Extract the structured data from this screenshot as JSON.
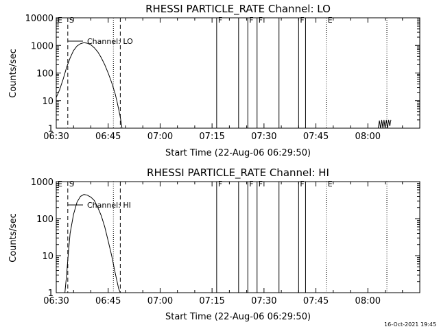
{
  "footer_timestamp": "16-Oct-2021 19:45",
  "chart_data": [
    {
      "type": "line",
      "title": "RHESSI PARTICLE_RATE Channel: LO",
      "xlabel": "Start Time (22-Aug-06 06:29:50)",
      "ylabel": "Counts/sec",
      "yscale": "log",
      "xlim": [
        "06:30",
        "08:15"
      ],
      "ylim": [
        1,
        10000
      ],
      "x_ticks": [
        "06:30",
        "06:45",
        "07:00",
        "07:15",
        "07:30",
        "07:45",
        "08:00"
      ],
      "y_ticks": [
        "1",
        "10",
        "100",
        "1000",
        "10000"
      ],
      "legend": "Channel: LO",
      "legend_position": "top-left",
      "series": [
        {
          "name": "Channel: LO",
          "points": [
            [
              "06:30:00",
              13
            ],
            [
              "06:31:00",
              25
            ],
            [
              "06:32:00",
              60
            ],
            [
              "06:33:00",
              160
            ],
            [
              "06:34:00",
              350
            ],
            [
              "06:35:00",
              650
            ],
            [
              "06:36:00",
              950
            ],
            [
              "06:37:00",
              1150
            ],
            [
              "06:38:00",
              1250
            ],
            [
              "06:39:00",
              1200
            ],
            [
              "06:40:00",
              1050
            ],
            [
              "06:41:00",
              820
            ],
            [
              "06:42:00",
              580
            ],
            [
              "06:43:00",
              360
            ],
            [
              "06:44:00",
              200
            ],
            [
              "06:45:00",
              100
            ],
            [
              "06:46:00",
              45
            ],
            [
              "06:47:00",
              18
            ],
            [
              "06:47:30",
              10
            ],
            [
              "06:48:00",
              5
            ],
            [
              "06:48:30",
              2.5
            ],
            [
              "06:49:00",
              1
            ]
          ]
        },
        {
          "name": "",
          "points": [
            [
              "08:03:00",
              1
            ],
            [
              "08:03:20",
              1.9
            ],
            [
              "08:03:40",
              1
            ],
            [
              "08:04:00",
              2
            ],
            [
              "08:04:20",
              1
            ],
            [
              "08:04:40",
              2
            ],
            [
              "08:05:00",
              1
            ],
            [
              "08:05:20",
              2
            ],
            [
              "08:05:40",
              1
            ],
            [
              "08:06:00",
              2
            ],
            [
              "08:06:20",
              1.2
            ],
            [
              "08:06:40",
              2
            ]
          ]
        }
      ],
      "event_markers": [
        {
          "label": "E",
          "time": "06:30",
          "line": "none"
        },
        {
          "label": "S",
          "time": "06:33:20",
          "line": "dashed"
        },
        {
          "label": "",
          "time": "06:48:30",
          "line": "dashed"
        },
        {
          "label": "",
          "time": "06:46:30",
          "line": "dotted"
        },
        {
          "label": "F",
          "time": "07:16:20",
          "line": "solid"
        },
        {
          "label": "",
          "time": "07:22:40",
          "line": "solid"
        },
        {
          "label": "F",
          "time": "07:25:20",
          "line": "solid"
        },
        {
          "label": "F",
          "time": "07:28:00",
          "line": "solid"
        },
        {
          "label": "",
          "time": "07:34:20",
          "line": "solid"
        },
        {
          "label": "F",
          "time": "07:40:00",
          "line": "solid"
        },
        {
          "label": "",
          "time": "07:42:00",
          "line": "solid"
        },
        {
          "label": "E",
          "time": "07:48:00",
          "line": "dotted"
        },
        {
          "label": "",
          "time": "08:05:30",
          "line": "dotted"
        }
      ]
    },
    {
      "type": "line",
      "title": "RHESSI PARTICLE_RATE Channel: HI",
      "xlabel": "Start Time (22-Aug-06 06:29:50)",
      "ylabel": "Counts/sec",
      "yscale": "log",
      "xlim": [
        "06:30",
        "08:15"
      ],
      "ylim": [
        1,
        1000
      ],
      "x_ticks": [
        "06:30",
        "06:45",
        "07:00",
        "07:15",
        "07:30",
        "07:45",
        "08:00"
      ],
      "y_ticks": [
        "1",
        "10",
        "100",
        "1000"
      ],
      "legend": "Channel: HI",
      "legend_position": "top-left",
      "series": [
        {
          "name": "Channel: HI",
          "points": [
            [
              "06:32:30",
              1
            ],
            [
              "06:33:00",
              3
            ],
            [
              "06:33:30",
              12
            ],
            [
              "06:34:00",
              40
            ],
            [
              "06:35:00",
              130
            ],
            [
              "06:36:00",
              280
            ],
            [
              "06:37:00",
              400
            ],
            [
              "06:38:00",
              450
            ],
            [
              "06:39:00",
              430
            ],
            [
              "06:40:00",
              380
            ],
            [
              "06:41:00",
              310
            ],
            [
              "06:42:00",
              200
            ],
            [
              "06:43:00",
              120
            ],
            [
              "06:44:00",
              60
            ],
            [
              "06:45:00",
              25
            ],
            [
              "06:46:00",
              10
            ],
            [
              "06:47:00",
              3.5
            ],
            [
              "06:48:00",
              1.3
            ],
            [
              "06:48:30",
              1
            ]
          ]
        }
      ],
      "event_markers": [
        {
          "label": "E",
          "time": "06:30",
          "line": "none"
        },
        {
          "label": "S",
          "time": "06:33:20",
          "line": "dashed"
        },
        {
          "label": "",
          "time": "06:48:30",
          "line": "dashed"
        },
        {
          "label": "",
          "time": "06:46:30",
          "line": "dotted"
        },
        {
          "label": "F",
          "time": "07:16:20",
          "line": "solid"
        },
        {
          "label": "",
          "time": "07:22:40",
          "line": "solid"
        },
        {
          "label": "F",
          "time": "07:25:20",
          "line": "solid"
        },
        {
          "label": "F",
          "time": "07:28:00",
          "line": "solid"
        },
        {
          "label": "",
          "time": "07:34:20",
          "line": "solid"
        },
        {
          "label": "F",
          "time": "07:40:00",
          "line": "solid"
        },
        {
          "label": "",
          "time": "07:42:00",
          "line": "solid"
        },
        {
          "label": "E",
          "time": "07:48:00",
          "line": "dotted"
        },
        {
          "label": "",
          "time": "08:05:30",
          "line": "dotted"
        }
      ]
    }
  ]
}
